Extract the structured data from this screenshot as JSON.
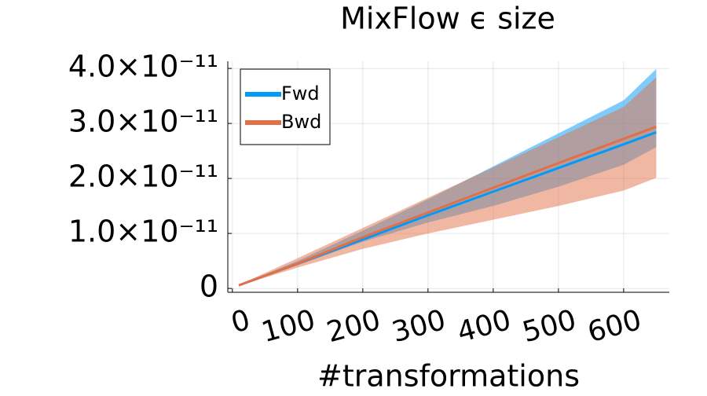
{
  "chart_data": {
    "type": "line",
    "title": "MixFlow ϵ size",
    "xlabel": "#transformations",
    "x": [
      10,
      100,
      200,
      300,
      400,
      500,
      600,
      650
    ],
    "series": [
      {
        "name": "Fwd",
        "color": "#009af9",
        "values": [
          5.7e-13,
          4.5e-12,
          8.9e-12,
          1.33e-11,
          1.76e-11,
          2.19e-11,
          2.62e-11,
          2.84e-11
        ],
        "upper": [
          6e-13,
          5e-12,
          1.05e-11,
          1.62e-11,
          2.22e-11,
          2.82e-11,
          3.42e-11,
          3.99e-11
        ],
        "lower": [
          5e-13,
          4.2e-12,
          8.5e-12,
          1.2e-11,
          1.5e-11,
          1.85e-11,
          2.25e-11,
          2.57e-11
        ]
      },
      {
        "name": "Bwd",
        "color": "#e26f46",
        "values": [
          5.7e-13,
          4.5e-12,
          9.3e-12,
          1.38e-11,
          1.83e-11,
          2.28e-11,
          2.72e-11,
          2.94e-11
        ],
        "upper": [
          6.5e-13,
          5.5e-12,
          1.1e-11,
          1.65e-11,
          2.2e-11,
          2.75e-11,
          3.3e-11,
          3.84e-11
        ],
        "lower": [
          5e-13,
          3.8e-12,
          7.2e-12,
          1e-11,
          1.25e-11,
          1.5e-11,
          1.78e-11,
          2.01e-11
        ]
      }
    ],
    "xlim": [
      -7,
      670
    ],
    "ylim": [
      -7e-13,
      4.13e-11
    ],
    "xticks": [
      0,
      100,
      200,
      300,
      400,
      500,
      600
    ],
    "yticks": [
      0,
      {
        "value": 1e-11,
        "label": "1.0×10⁻¹¹"
      },
      {
        "value": 2e-11,
        "label": "2.0×10⁻¹¹"
      },
      {
        "value": 3e-11,
        "label": "3.0×10⁻¹¹"
      },
      {
        "value": 4e-11,
        "label": "4.0×10⁻¹¹"
      }
    ],
    "grid": true,
    "legend": "top-left"
  }
}
